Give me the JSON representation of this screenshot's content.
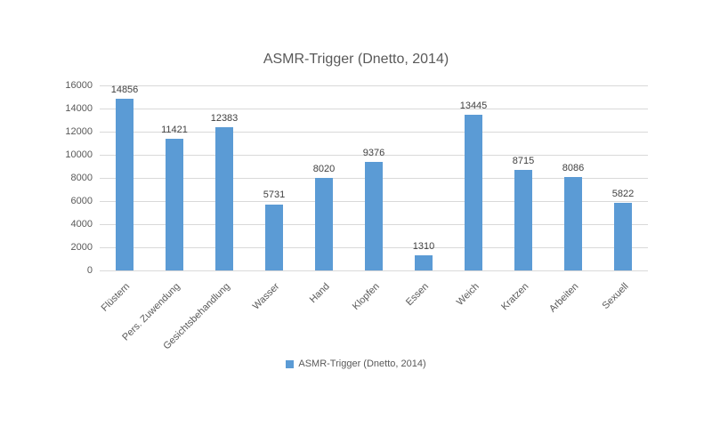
{
  "chart_data": {
    "type": "bar",
    "title": "ASMR-Trigger (Dnetto, 2014)",
    "categories": [
      "Flüstern",
      "Pers. Zuwendung",
      "Gesichtsbehandlung",
      "Wasser",
      "Hand",
      "Klopfen",
      "Essen",
      "Weich",
      "Kratzen",
      "Arbeiten",
      "Sexuell"
    ],
    "values": [
      14856,
      11421,
      12383,
      5731,
      8020,
      9376,
      1310,
      13445,
      8715,
      8086,
      5822
    ],
    "data_labels": [
      14856,
      11421,
      12383,
      5731,
      8020,
      9376,
      1310,
      13445,
      8715,
      8086,
      5822
    ],
    "xlabel": "",
    "ylabel": "",
    "ylim": [
      0,
      16000
    ],
    "yticks": [
      0,
      2000,
      4000,
      6000,
      8000,
      10000,
      12000,
      14000,
      16000
    ],
    "grid": true,
    "legend_position": "bottom",
    "series_name": "ASMR-Trigger (Dnetto, 2014)",
    "bar_color": "#5b9bd5",
    "gridline_color": "#d9d9d9",
    "title_color": "#595959",
    "axis_text_color": "#595959",
    "data_label_color": "#404040",
    "background_color": "#ffffff"
  }
}
